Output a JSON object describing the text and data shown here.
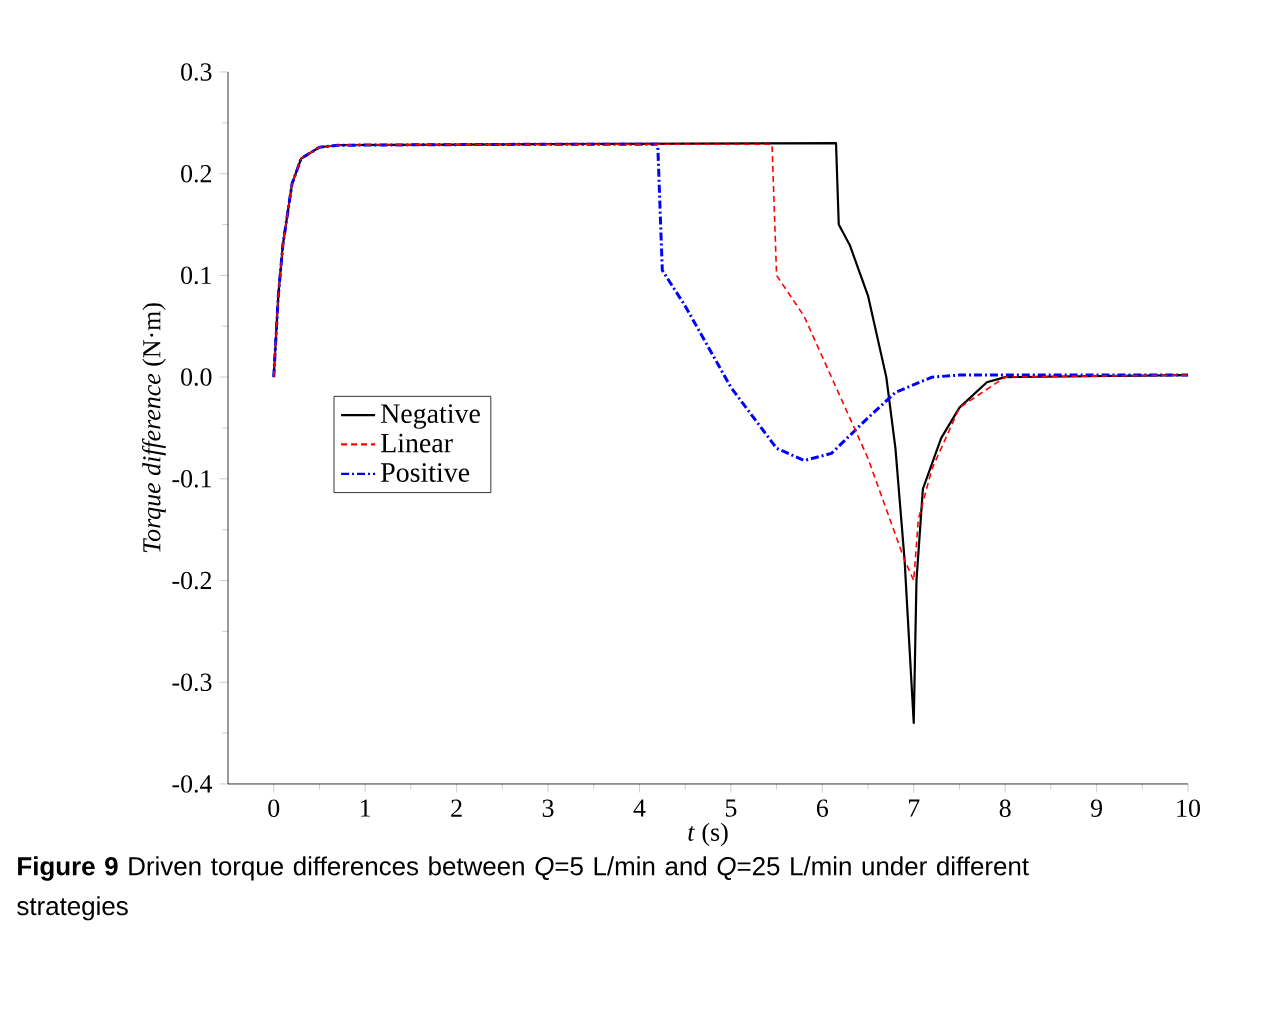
{
  "chart_data": {
    "type": "line",
    "xlabel": "*t* (s)",
    "ylabel": "*Torque difference* (N·m)",
    "annotations": [
      "**Figure 9** Driven torque differences between *Q*=5 L/min and *Q*=25 L/min under different strategies"
    ],
    "xlim": [
      -0.5,
      10
    ],
    "xticks": [
      0,
      1,
      2,
      3,
      4,
      5,
      6,
      7,
      8,
      9,
      10
    ],
    "ylim": [
      -0.4,
      0.3
    ],
    "yticks": [
      {
        "value": 0.3,
        "label": "0.3"
      },
      {
        "value": 0.2,
        "label": "0.2"
      },
      {
        "value": 0.1,
        "label": "0.1"
      },
      {
        "value": 0,
        "label": "0.0"
      },
      {
        "value": -0.1,
        "label": "-0.1"
      },
      {
        "value": -0.2,
        "label": "-0.2"
      },
      {
        "value": -0.3,
        "label": "-0.3"
      },
      {
        "value": -0.4,
        "label": "-0.4"
      }
    ],
    "legend": "center left",
    "grid": false,
    "marker": "none",
    "series": [
      {
        "name": "Negative",
        "color": "#000000",
        "line_style": "solid",
        "x": [
          0,
          0.05,
          0.1,
          0.2,
          0.3,
          0.5,
          0.7,
          3,
          6.15,
          6.18,
          6.3,
          6.5,
          6.7,
          6.8,
          6.9,
          6.95,
          7.0,
          7.03,
          7.1,
          7.3,
          7.5,
          7.8,
          8,
          10
        ],
        "values": [
          0,
          0.08,
          0.13,
          0.19,
          0.215,
          0.226,
          0.228,
          0.229,
          0.23,
          0.15,
          0.13,
          0.08,
          0.0,
          -0.07,
          -0.18,
          -0.26,
          -0.34,
          -0.2,
          -0.11,
          -0.06,
          -0.03,
          -0.005,
          0.0,
          0.002
        ]
      },
      {
        "name": "Linear",
        "color": "#ff0000",
        "line_style": "dashed",
        "x": [
          0,
          0.05,
          0.1,
          0.2,
          0.3,
          0.5,
          0.7,
          3,
          5.45,
          5.5,
          5.8,
          6.0,
          6.2,
          6.5,
          6.7,
          6.9,
          7.0,
          7.05,
          7.2,
          7.5,
          8,
          10
        ],
        "values": [
          0,
          0.08,
          0.13,
          0.19,
          0.215,
          0.226,
          0.228,
          0.229,
          0.229,
          0.1,
          0.06,
          0.02,
          -0.02,
          -0.08,
          -0.13,
          -0.18,
          -0.2,
          -0.14,
          -0.09,
          -0.03,
          0.0,
          0.002
        ]
      },
      {
        "name": "Positive",
        "color": "#0000ff",
        "line_style": "dashdot",
        "x": [
          0,
          0.05,
          0.1,
          0.2,
          0.3,
          0.5,
          0.7,
          3,
          4.2,
          4.25,
          4.5,
          5.0,
          5.5,
          5.8,
          6.1,
          6.5,
          6.8,
          7.2,
          7.5,
          10
        ],
        "values": [
          0,
          0.08,
          0.13,
          0.19,
          0.215,
          0.226,
          0.228,
          0.229,
          0.229,
          0.105,
          0.07,
          -0.01,
          -0.07,
          -0.082,
          -0.075,
          -0.04,
          -0.015,
          0.0,
          0.002,
          0.002
        ]
      }
    ]
  }
}
